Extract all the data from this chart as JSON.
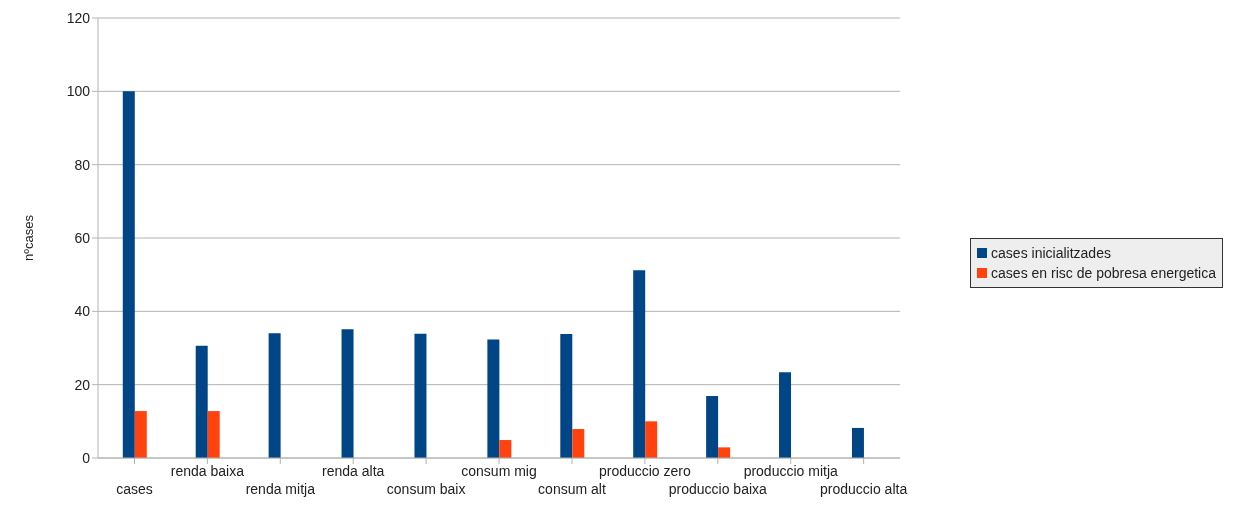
{
  "chart_data": {
    "type": "bar",
    "ylabel": "nºcases",
    "categories": [
      "cases",
      "renda baixa",
      "renda mitja",
      "renda alta",
      "consum baix",
      "consum mig",
      "consum alt",
      "produccio zero",
      "produccio baixa",
      "produccio mitja",
      "produccio alta"
    ],
    "series": [
      {
        "name": "cases inicialitzades",
        "color": "#004586",
        "values": [
          100,
          30.6,
          34,
          35.1,
          33.9,
          32.3,
          33.8,
          51.2,
          16.9,
          23.4,
          8.2
        ]
      },
      {
        "name": "cases en risc de pobresa energetica",
        "color": "#ff420e",
        "values": [
          12.8,
          12.8,
          0,
          0,
          0,
          4.9,
          7.9,
          10,
          2.9,
          0,
          0
        ]
      }
    ],
    "ylim": [
      0,
      120
    ],
    "yticks": [
      0,
      20,
      40,
      60,
      80,
      100,
      120
    ],
    "grid": "y",
    "legend": "right"
  }
}
